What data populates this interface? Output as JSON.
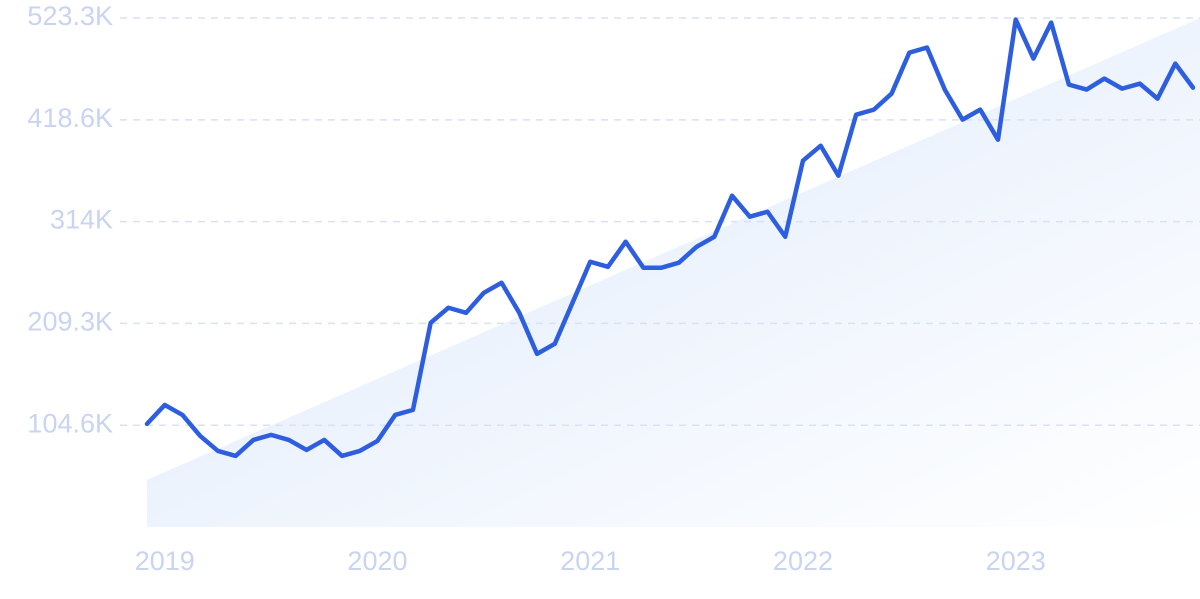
{
  "chart_data": {
    "type": "line",
    "categories": [
      null,
      "2019",
      null,
      null,
      null,
      null,
      null,
      null,
      null,
      null,
      null,
      null,
      null,
      "2020",
      null,
      null,
      null,
      null,
      null,
      null,
      null,
      null,
      null,
      null,
      null,
      "2021",
      null,
      null,
      null,
      null,
      null,
      null,
      null,
      null,
      null,
      null,
      null,
      "2022",
      null,
      null,
      null,
      null,
      null,
      null,
      null,
      null,
      null,
      null,
      null,
      "2023",
      null,
      null,
      null,
      null,
      null,
      null,
      null,
      null,
      null,
      null
    ],
    "series": [
      {
        "color": "#2e5ee0",
        "values": [
          106000,
          125500,
          115200,
          93600,
          78200,
          73100,
          89500,
          94700,
          89500,
          79200,
          89500,
          73100,
          78200,
          88500,
          115200,
          120400,
          209900,
          225400,
          220200,
          240800,
          251100,
          220200,
          178000,
          188300,
          230500,
          272700,
          267500,
          293300,
          266500,
          266500,
          271700,
          288100,
          298400,
          340600,
          319000,
          324100,
          298400,
          376600,
          392000,
          361200,
          423900,
          429100,
          445600,
          487700,
          492900,
          449700,
          418800,
          429100,
          398200,
          521700,
          481600,
          518600,
          454800,
          449700,
          461000,
          450700,
          455800,
          440400,
          476400,
          451700
        ]
      }
    ],
    "trend": [
      48400,
      523300
    ],
    "ylim": [
      0,
      523300
    ],
    "yticks": [
      {
        "value": 104600,
        "label": "104.6K"
      },
      {
        "value": 209300,
        "label": "209.3K"
      },
      {
        "value": 314000,
        "label": "314K"
      },
      {
        "value": 418600,
        "label": "418.6K"
      },
      {
        "value": 523300,
        "label": "523.3K"
      }
    ],
    "grid": true
  }
}
